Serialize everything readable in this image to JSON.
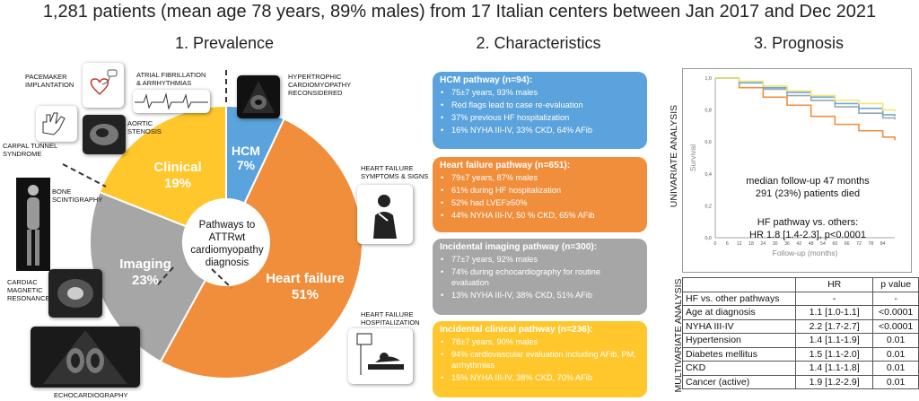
{
  "title": "1,281 patients (mean age 78 years, 89% males) from 17 Italian centers between Jan 2017 and Dec 2021",
  "prevalence": {
    "heading": "1. Prevalence",
    "center_text": [
      "Pathways to",
      "ATTRwt",
      "cardiomyopathy",
      "diagnosis"
    ],
    "segments": [
      {
        "name": "HCM",
        "pct": "7%",
        "value": 7,
        "color": "#5ba3dc"
      },
      {
        "name": "Heart failure",
        "pct": "51%",
        "value": 51,
        "color": "#f08e3c"
      },
      {
        "name": "Imaging",
        "pct": "23%",
        "value": 23,
        "color": "#a6a6a6"
      },
      {
        "name": "Clinical",
        "pct": "19%",
        "value": 19,
        "color": "#ffc72c"
      }
    ],
    "icon_labels": {
      "pacemaker": [
        "PACEMAKER",
        "IMPLANTATION"
      ],
      "afib": [
        "ATRIAL FIBRILLATION",
        "& ARRHYTHMIAS"
      ],
      "hcm": [
        "HYPERTROPHIC",
        "CARDIOMYOPATHY",
        "RECONSIDERED"
      ],
      "aortic": [
        "AORTIC",
        "STENOSIS"
      ],
      "carpal": [
        "CARPAL TUNNEL",
        "SYNDROME"
      ],
      "hf_symptoms": [
        "HEART FAILURE",
        "SYMPTOMS & SIGNS"
      ],
      "bone": [
        "BONE",
        "SCINTIGRAPHY"
      ],
      "cmr": [
        "CARDIAC",
        "MAGNETIC",
        "RESONANCE"
      ],
      "hf_hosp": [
        "HEART FAILURE",
        "HOSPITALIZATION"
      ],
      "echo": "ECHOCARDIOGRAPHY"
    }
  },
  "characteristics": {
    "heading": "2. Characteristics",
    "cards": [
      {
        "title": "HCM pathway (n=94):",
        "color": "#5ba3dc",
        "items": [
          "75±7 years, 93% males",
          "Red flags lead to case re-evaluation",
          "37% previous HF hospitalization",
          "16% NYHA III-IV, 33% CKD, 64% AFib"
        ]
      },
      {
        "title": "Heart failure pathway (n=651):",
        "color": "#f08e3c",
        "items": [
          "79±7 years, 87% males",
          "61% during HF hospitalization",
          "52% had LVEF≥50%",
          "44% NYHA III-IV, 50 % CKD, 65% AFib"
        ]
      },
      {
        "title": "Incidental imaging pathway (n=300):",
        "color": "#a6a6a6",
        "items": [
          "77±7 years, 92% males",
          "74% during echocardiography for routine evaluation",
          "13% NYHA III-IV, 38% CKD, 51% AFib"
        ]
      },
      {
        "title": "Incidental clinical pathway (n=236):",
        "color": "#ffc72c",
        "items": [
          "78±7 years, 90% males",
          "94% cardiovascular evaluation including AFib, PM, arrhythmias",
          "15% NYHA III-IV, 38% CKD, 70% AFib"
        ]
      }
    ]
  },
  "prognosis": {
    "heading": "3. Prognosis",
    "univariate_label": "UNIVARIATE ANALYSIS",
    "multivariate_label": "MULTIVARIATE ANALYSIS",
    "followup_text": [
      "median follow-up 47 months",
      "291 (23%) patients died"
    ],
    "hr_text": [
      "HF pathway vs. others:",
      "HR 1.8 [1.4-2.3], p<0.0001"
    ],
    "table": {
      "headers": [
        "",
        "HR",
        "p value"
      ],
      "rows": [
        [
          "HF vs. other pathways",
          "-",
          "-"
        ],
        [
          "Age at diagnosis",
          "1.1 [1.0-1.1]",
          "<0.0001"
        ],
        [
          "NYHA III-IV",
          "2.2 [1.7-2.7]",
          "<0.0001"
        ],
        [
          "Hypertension",
          "1.4 [1.1-1.9]",
          "0.01"
        ],
        [
          "Diabetes mellitus",
          "1.5 [1.1-2.0]",
          "0.01"
        ],
        [
          "CKD",
          "1.4 [1.1-1.8]",
          "0.01"
        ],
        [
          "Cancer (active)",
          "1.9 [1.2-2.9]",
          "0.01"
        ]
      ]
    }
  },
  "chart_data": {
    "type": "line",
    "xlabel": "Follow-up (months)",
    "ylabel": "Survival",
    "xlim": [
      0,
      90
    ],
    "ylim": [
      0.0,
      1.0
    ],
    "x_ticks": [
      "0",
      "6",
      "12",
      "18",
      "24",
      "30",
      "36",
      "42",
      "48",
      "54",
      "60",
      "66",
      "72",
      "78",
      "84"
    ],
    "y_ticks": [
      "0,0",
      "0,2",
      "0,4",
      "0,6",
      "0,8",
      "1,0"
    ],
    "series": [
      {
        "color": "#f08e3c",
        "x": [
          0,
          12,
          24,
          36,
          48,
          60,
          72,
          84,
          90
        ],
        "y": [
          1.0,
          0.94,
          0.88,
          0.83,
          0.76,
          0.71,
          0.67,
          0.63,
          0.61
        ]
      },
      {
        "color": "#9aa6ad",
        "x": [
          0,
          12,
          24,
          36,
          48,
          60,
          72,
          84,
          90
        ],
        "y": [
          1.0,
          0.97,
          0.93,
          0.89,
          0.86,
          0.82,
          0.78,
          0.75,
          0.74
        ]
      },
      {
        "color": "#6fa8dc",
        "x": [
          0,
          12,
          24,
          36,
          48,
          60,
          72,
          84,
          90
        ],
        "y": [
          1.0,
          0.97,
          0.94,
          0.91,
          0.88,
          0.84,
          0.81,
          0.77,
          0.76
        ]
      },
      {
        "color": "#f5e66b",
        "x": [
          0,
          12,
          24,
          36,
          48,
          60,
          72,
          84,
          90
        ],
        "y": [
          1.0,
          0.98,
          0.95,
          0.92,
          0.89,
          0.86,
          0.84,
          0.8,
          0.79
        ]
      }
    ]
  }
}
